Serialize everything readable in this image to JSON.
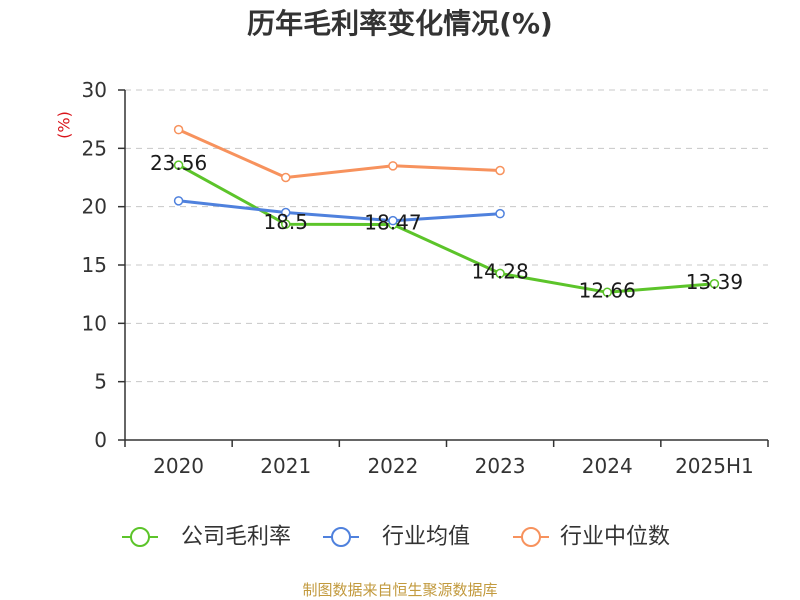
{
  "source_note": "制图数据来自恒生聚源数据库",
  "chart_data": {
    "type": "line",
    "title": "历年毛利率变化情况(%)",
    "ylabel": "(%)",
    "categories": [
      "2020",
      "2021",
      "2022",
      "2023",
      "2024",
      "2025H1"
    ],
    "ylim": [
      0,
      30
    ],
    "yticks": [
      0,
      5,
      10,
      15,
      20,
      25,
      30
    ],
    "grid": true,
    "legend_position": "bottom",
    "series": [
      {
        "name": "公司毛利率",
        "color": "#5cc42a",
        "show_labels": true,
        "values": [
          23.56,
          18.5,
          18.47,
          14.28,
          12.66,
          13.39
        ]
      },
      {
        "name": "行业均值",
        "color": "#4f81dd",
        "show_labels": false,
        "values": [
          20.5,
          19.5,
          18.8,
          19.4,
          null,
          null
        ]
      },
      {
        "name": "行业中位数",
        "color": "#f7925d",
        "show_labels": false,
        "values": [
          26.6,
          22.5,
          23.5,
          23.1,
          null,
          null
        ]
      }
    ]
  }
}
